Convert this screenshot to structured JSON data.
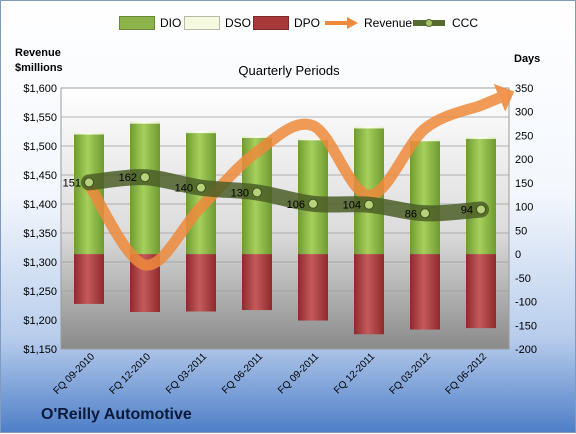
{
  "page": {
    "company": "O'Reilly Automotive",
    "left_axis_label_line1": "Revenue",
    "left_axis_label_line2": "$millions",
    "right_axis_label": "Days"
  },
  "legend": [
    {
      "label": "DIO",
      "color": "#8cb44a",
      "kind": "bar"
    },
    {
      "label": "DSO",
      "color": "#f4f9e0",
      "kind": "bar"
    },
    {
      "label": "DPO",
      "color": "#a8383a",
      "kind": "bar"
    },
    {
      "label": "Revenue",
      "color": "#ef8a3c",
      "kind": "arrow"
    },
    {
      "label": "CCC",
      "color": "#556b2f",
      "kind": "line-marker"
    }
  ],
  "chart_data": {
    "type": "bar",
    "title": "Quarterly Periods",
    "categories": [
      "FQ 09-2010",
      "FQ 12-2010",
      "FQ 03-2011",
      "FQ 06-2011",
      "FQ 09-2011",
      "FQ 12-2011",
      "FQ 03-2012",
      "FQ 06-2012"
    ],
    "left_axis": {
      "ylim": [
        1150,
        1600
      ],
      "ticks": [
        "$1,150",
        "$1,200",
        "$1,250",
        "$1,300",
        "$1,350",
        "$1,400",
        "$1,450",
        "$1,500",
        "$1,550",
        "$1,600"
      ]
    },
    "right_axis": {
      "ylim": [
        -200,
        350
      ],
      "ticks": [
        "-200",
        "-150",
        "-100",
        "-50",
        "0",
        "50",
        "100",
        "150",
        "200",
        "250",
        "300",
        "350"
      ]
    },
    "series": [
      {
        "name": "DIO",
        "axis": "right",
        "values": [
          252,
          275,
          255,
          245,
          240,
          265,
          238,
          243
        ]
      },
      {
        "name": "DSO",
        "axis": "right",
        "values": [
          4,
          5,
          4,
          4,
          4,
          4,
          4,
          4
        ]
      },
      {
        "name": "DPO",
        "axis": "right",
        "values": [
          -105,
          -122,
          -121,
          -118,
          -140,
          -169,
          -159,
          -156
        ]
      },
      {
        "name": "Revenue",
        "axis": "left",
        "values": [
          1433,
          1295,
          1395,
          1490,
          1535,
          1415,
          1530,
          1570
        ]
      },
      {
        "name": "CCC",
        "axis": "right",
        "values": [
          151,
          162,
          140,
          130,
          106,
          104,
          86,
          94
        ]
      }
    ],
    "ccc_labels": [
      "151",
      "162",
      "140",
      "130",
      "106",
      "104",
      "86",
      "94"
    ]
  }
}
